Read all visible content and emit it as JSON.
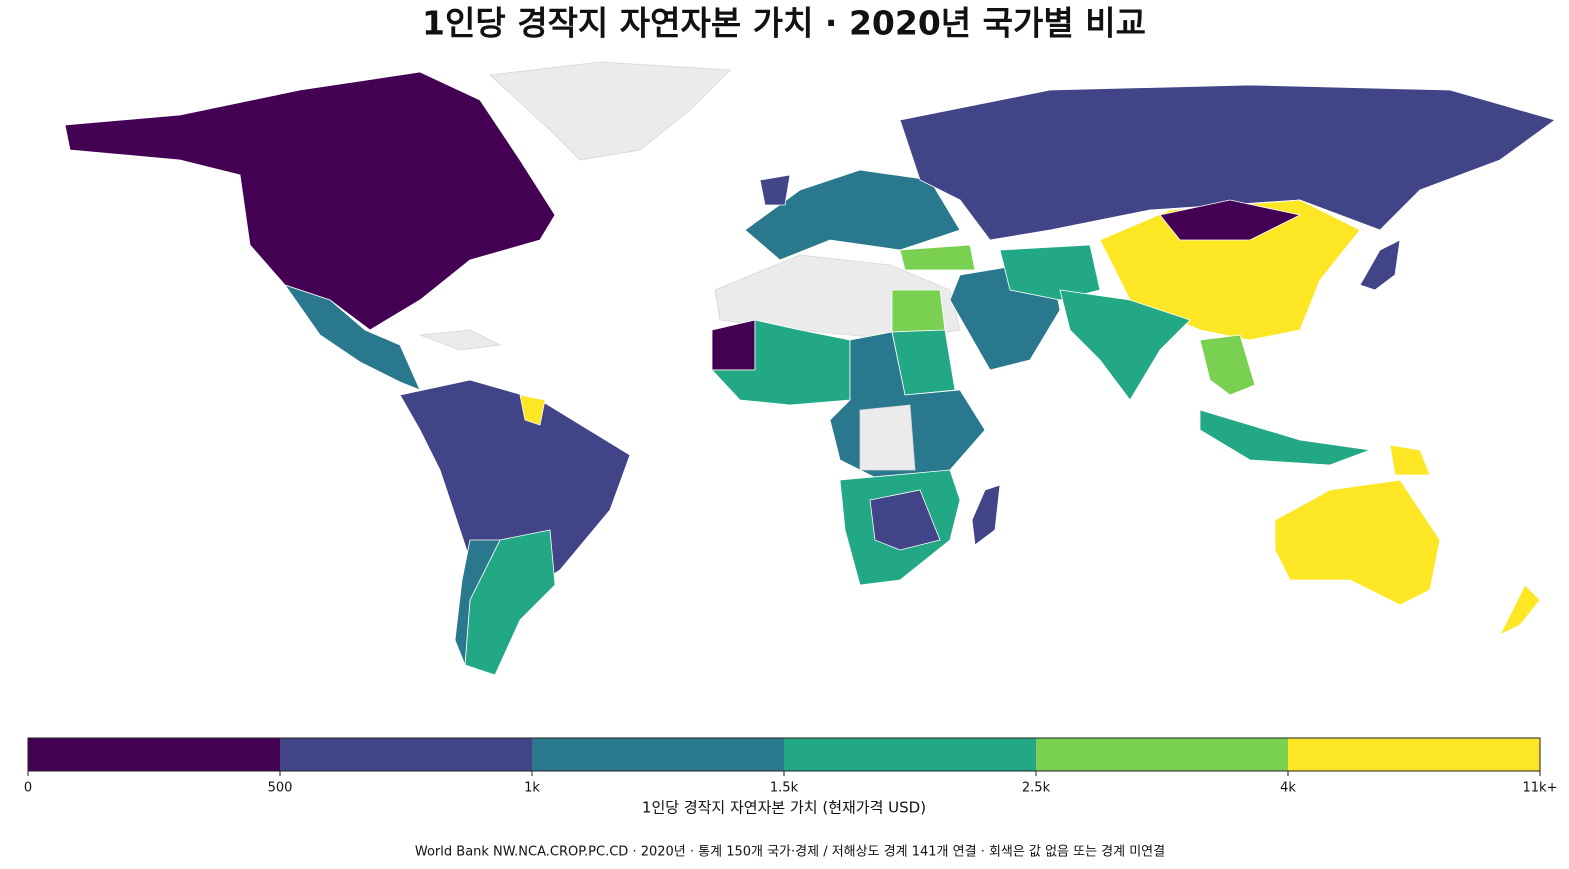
{
  "chart_data": {
    "type": "choropleth",
    "title": "1인당 경작지 자연자본 가치 · 2020년 국가별 비교",
    "colorbar": {
      "ticks": [
        0,
        500,
        {
          "value": 1000,
          "label": "1k"
        },
        {
          "value": 1500,
          "label": "1.5k"
        },
        {
          "value": 2500,
          "label": "2.5k"
        },
        {
          "value": 4000,
          "label": "4k"
        },
        {
          "value": 11000,
          "label": "11k+"
        }
      ],
      "colors": [
        "#440154",
        "#414487",
        "#2a788e",
        "#22a884",
        "#7ad151",
        "#fde725"
      ],
      "label": "1인당 경작지 자연자본 가치 (현재가격 USD)"
    },
    "footnote": "World Bank NW.NCA.CROP.PC.CD · 2020년 · 통계 150개 국가·경제 / 저해상도 경계 141개 연결 · 회색은 값 없음 또는 경계 미연결"
  }
}
